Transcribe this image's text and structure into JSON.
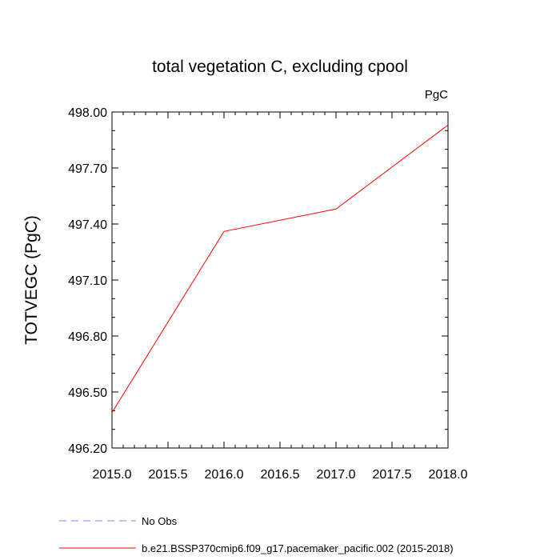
{
  "chart_data": {
    "type": "line",
    "title": "total vegetation C, excluding cpool",
    "units_label": "PgC",
    "xlabel": "",
    "ylabel": "TOTVEGC  (PgC)",
    "xlim": [
      2015.0,
      2018.0
    ],
    "ylim": [
      496.2,
      498.0
    ],
    "xticks": [
      "2015.0",
      "2015.5",
      "2016.0",
      "2016.5",
      "2017.0",
      "2017.5",
      "2018.0"
    ],
    "yticks": [
      "496.20",
      "496.50",
      "496.80",
      "497.10",
      "497.40",
      "497.70",
      "498.00"
    ],
    "grid": false,
    "legend_position": "bottom",
    "series": [
      {
        "name": "b.e21.BSSP370cmip6.f09_g17.pacemaker_pacific.002 (2015-2018)",
        "color": "#ff0000",
        "dash": "solid",
        "x": [
          2015.0,
          2016.0,
          2017.0,
          2018.0
        ],
        "y": [
          496.39,
          497.36,
          497.48,
          497.93
        ]
      }
    ],
    "legend": [
      {
        "label": "No Obs",
        "color": "#8080ff",
        "dash": "dashed"
      },
      {
        "label": "b.e21.BSSP370cmip6.f09_g17.pacemaker_pacific.002 (2015-2018)",
        "color": "#ff0000",
        "dash": "solid"
      }
    ]
  }
}
